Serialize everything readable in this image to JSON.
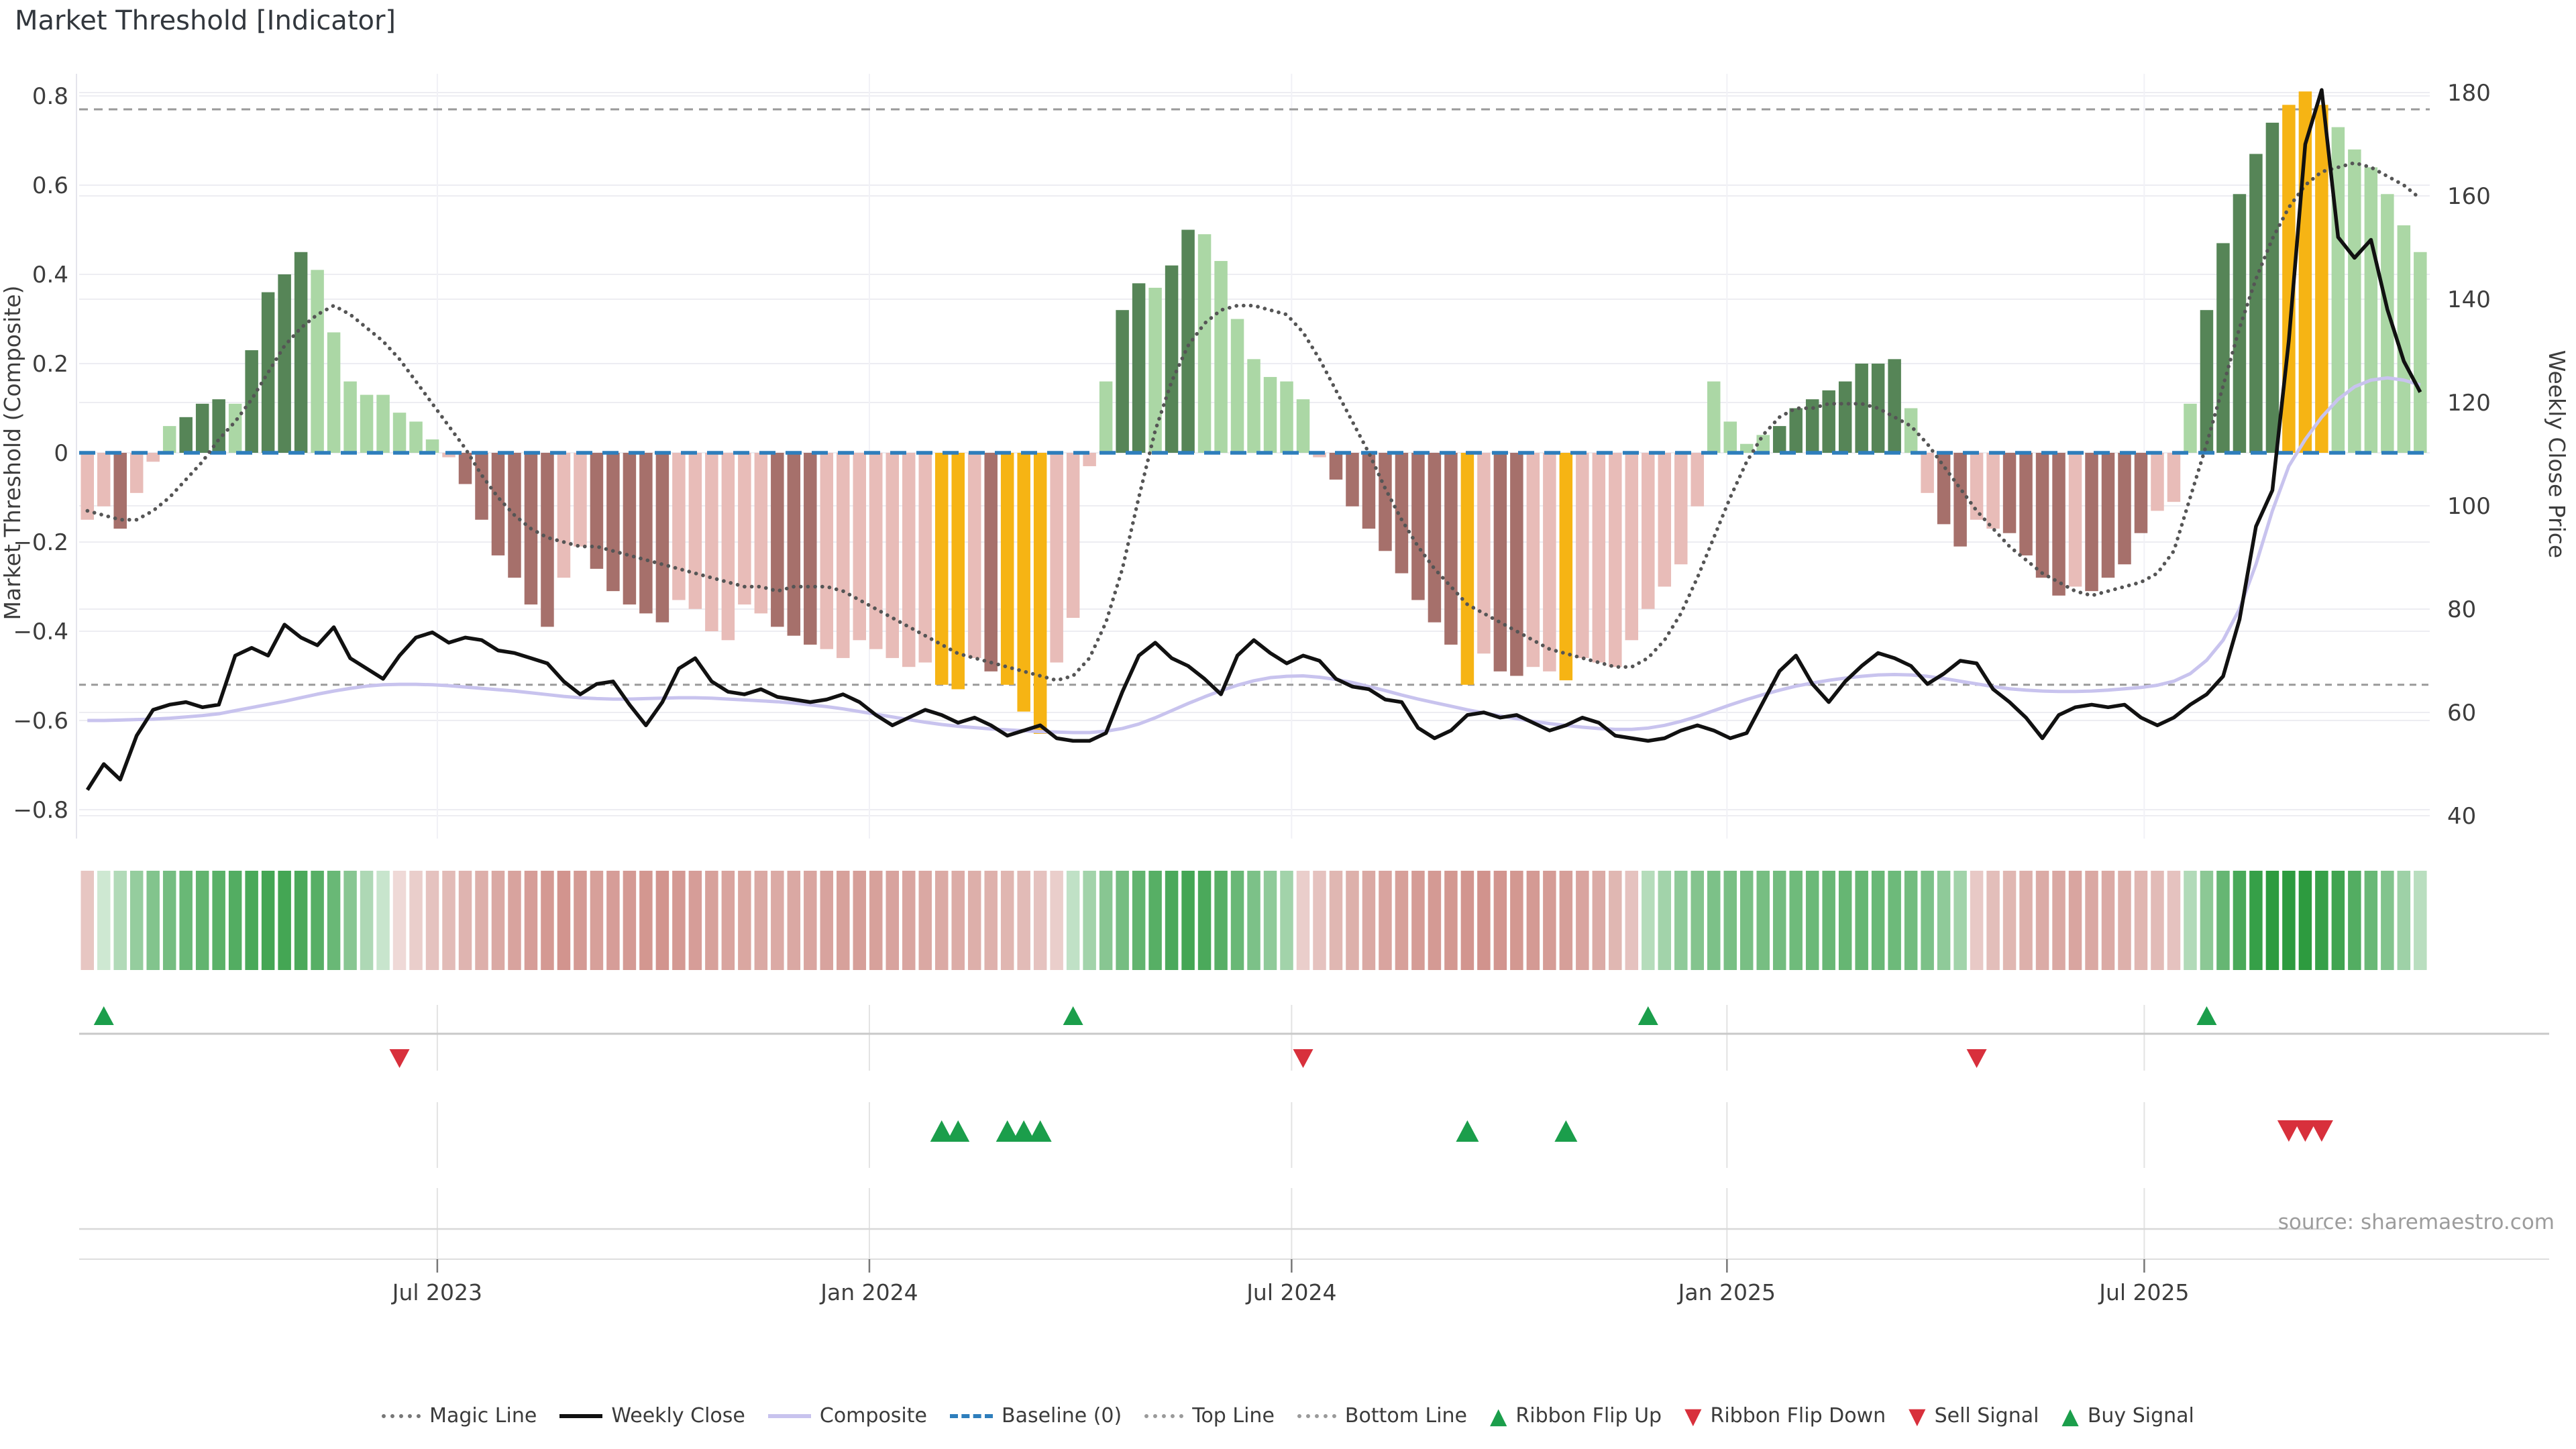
{
  "title": "Market Threshold [Indicator]",
  "source": "source: sharemaestro.com",
  "axes": {
    "left": {
      "title": "Market Threshold (Composite)",
      "ticks": [
        "0.8",
        "0.6",
        "0.4",
        "0.2",
        "0",
        "−0.2",
        "−0.4",
        "−0.6",
        "−0.8"
      ],
      "tick_values": [
        0.8,
        0.6,
        0.4,
        0.2,
        0,
        -0.2,
        -0.4,
        -0.6,
        -0.8
      ]
    },
    "right": {
      "title": "Weekly Close Price",
      "ticks": [
        "180",
        "160",
        "140",
        "120",
        "100",
        "80",
        "60",
        "40"
      ],
      "tick_values": [
        180,
        160,
        140,
        120,
        100,
        80,
        60,
        40
      ]
    },
    "x": {
      "ticks": [
        {
          "label": "Jul 2023",
          "w": 21.3
        },
        {
          "label": "Jan 2024",
          "w": 47.6
        },
        {
          "label": "Jul 2024",
          "w": 73.3
        },
        {
          "label": "Jan 2025",
          "w": 99.8
        },
        {
          "label": "Jul 2025",
          "w": 125.2
        }
      ]
    }
  },
  "colors": {
    "bar_pale_red": "#e8bcb8",
    "bar_dark_red": "#a6706b",
    "bar_pale_green": "#abd7a5",
    "bar_dark_green": "#568557",
    "bar_gold": "#f6b414",
    "weekly_close": "#111111",
    "composite": "#c8c3ee",
    "magic_line": "#555555",
    "baseline": "#2e7ebc",
    "guide_line": "#9a9a9a",
    "ribbon_green_max": "#2d9b3f",
    "ribbon_red_max": "#c77b73",
    "signal_green": "#1b9e4b",
    "signal_red": "#d8303c",
    "grid": "#ededf2",
    "panel_grid": "#e3e3e3",
    "separator_strong": "#c9c9c9",
    "separator_light": "#d8d8d8",
    "tick_text": "#3d3d3d"
  },
  "chart_data": {
    "type": "combo: weekly threshold bars + dual-axis lines + ribbon heatmap + signal markers",
    "x_range": "Feb 2023 - Oct 2025, weekly (143 bars)",
    "n_weeks": 143,
    "ylim_left": [
      -0.8,
      0.8
    ],
    "ylim_right": [
      40,
      180
    ],
    "baseline": 0,
    "top_line": 0.77,
    "bottom_line": -0.52,
    "bar_type_key": {
      "p": "pale red",
      "d": "dark red",
      "l": "pale green",
      "g": "dark green",
      "G": "gold signal week"
    },
    "bar_types": "ppdpplggglggggllllllllpddddddppdddddppppppdddpppppppGGpdGGGppplgglgglllllllpddddddddGpddppGppppppppllllgggggggglpddppddddpddddpplgggggGGGllllll",
    "bars": [
      -0.15,
      -0.12,
      -0.17,
      -0.09,
      -0.02,
      0.06,
      0.08,
      0.11,
      0.12,
      0.11,
      0.23,
      0.36,
      0.4,
      0.45,
      0.41,
      0.27,
      0.16,
      0.13,
      0.13,
      0.09,
      0.07,
      0.03,
      -0.01,
      -0.07,
      -0.15,
      -0.23,
      -0.28,
      -0.34,
      -0.39,
      -0.28,
      -0.21,
      -0.26,
      -0.31,
      -0.34,
      -0.36,
      -0.38,
      -0.33,
      -0.35,
      -0.4,
      -0.42,
      -0.34,
      -0.36,
      -0.39,
      -0.41,
      -0.43,
      -0.44,
      -0.46,
      -0.42,
      -0.44,
      -0.46,
      -0.48,
      -0.47,
      -0.52,
      -0.53,
      -0.46,
      -0.49,
      -0.52,
      -0.58,
      -0.63,
      -0.47,
      -0.37,
      -0.03,
      0.16,
      0.32,
      0.38,
      0.37,
      0.42,
      0.5,
      0.49,
      0.43,
      0.3,
      0.21,
      0.17,
      0.16,
      0.12,
      -0.01,
      -0.06,
      -0.12,
      -0.17,
      -0.22,
      -0.27,
      -0.33,
      -0.38,
      -0.43,
      -0.52,
      -0.45,
      -0.49,
      -0.5,
      -0.48,
      -0.49,
      -0.51,
      -0.46,
      -0.47,
      -0.48,
      -0.42,
      -0.35,
      -0.3,
      -0.25,
      -0.12,
      0.16,
      0.07,
      0.02,
      0.04,
      0.06,
      0.1,
      0.12,
      0.14,
      0.16,
      0.2,
      0.2,
      0.21,
      0.1,
      -0.09,
      -0.16,
      -0.21,
      -0.15,
      -0.17,
      -0.18,
      -0.23,
      -0.28,
      -0.32,
      -0.3,
      -0.31,
      -0.28,
      -0.25,
      -0.18,
      -0.13,
      -0.11,
      0.11,
      0.32,
      0.47,
      0.58,
      0.67,
      0.74,
      0.78,
      0.81,
      0.78,
      0.73,
      0.68,
      0.64,
      0.58,
      0.51,
      0.45
    ],
    "weekly_close": [
      45,
      50,
      47,
      55.5,
      60.5,
      61.5,
      62,
      61,
      61.5,
      71,
      72.5,
      71,
      77,
      74.5,
      73,
      76.5,
      70.5,
      68.5,
      66.5,
      71,
      74.5,
      75.5,
      73.5,
      74.5,
      74,
      72,
      71.5,
      70.5,
      69.5,
      66,
      63.5,
      65.5,
      66,
      61.5,
      57.5,
      62,
      68.5,
      70.5,
      66,
      64,
      63.5,
      64.5,
      63,
      62.5,
      62,
      62.5,
      63.5,
      62,
      59.5,
      57.5,
      59,
      60.5,
      59.5,
      58,
      59,
      57.5,
      55.5,
      56.5,
      57.5,
      55,
      54.5,
      54.5,
      56,
      64,
      71,
      73.5,
      70.5,
      69,
      66.5,
      63.5,
      71,
      74,
      71.5,
      69.5,
      71,
      70,
      66.5,
      65,
      64.5,
      62.5,
      62,
      57,
      55,
      56.5,
      59.5,
      60,
      59,
      59.5,
      58,
      56.5,
      57.5,
      59,
      58,
      55.5,
      55,
      54.5,
      55,
      56.5,
      57.5,
      56.5,
      55,
      56,
      62,
      68,
      71,
      65.5,
      62,
      66,
      69,
      71.5,
      70.5,
      69,
      65.5,
      67.5,
      70,
      69.5,
      64.5,
      62,
      59,
      55,
      59.5,
      61,
      61.5,
      61,
      61.5,
      59,
      57.5,
      59,
      61.5,
      63.5,
      67,
      78,
      96,
      103,
      132,
      170,
      180.5,
      152,
      148,
      151.5,
      138,
      128,
      122
    ],
    "composite": [
      -0.6,
      -0.6,
      -0.599,
      -0.598,
      -0.597,
      -0.595,
      -0.592,
      -0.589,
      -0.585,
      -0.578,
      -0.571,
      -0.564,
      -0.557,
      -0.549,
      -0.541,
      -0.534,
      -0.528,
      -0.523,
      -0.52,
      -0.519,
      -0.519,
      -0.52,
      -0.522,
      -0.525,
      -0.528,
      -0.531,
      -0.534,
      -0.538,
      -0.542,
      -0.546,
      -0.549,
      -0.551,
      -0.552,
      -0.552,
      -0.551,
      -0.55,
      -0.549,
      -0.549,
      -0.55,
      -0.552,
      -0.554,
      -0.556,
      -0.558,
      -0.561,
      -0.565,
      -0.569,
      -0.574,
      -0.58,
      -0.586,
      -0.592,
      -0.598,
      -0.604,
      -0.609,
      -0.613,
      -0.616,
      -0.619,
      -0.621,
      -0.623,
      -0.625,
      -0.626,
      -0.627,
      -0.627,
      -0.624,
      -0.618,
      -0.608,
      -0.594,
      -0.578,
      -0.562,
      -0.547,
      -0.533,
      -0.521,
      -0.511,
      -0.504,
      -0.501,
      -0.5,
      -0.503,
      -0.508,
      -0.515,
      -0.524,
      -0.533,
      -0.543,
      -0.552,
      -0.56,
      -0.568,
      -0.576,
      -0.583,
      -0.59,
      -0.596,
      -0.602,
      -0.607,
      -0.611,
      -0.615,
      -0.618,
      -0.62,
      -0.62,
      -0.617,
      -0.611,
      -0.602,
      -0.591,
      -0.578,
      -0.565,
      -0.553,
      -0.542,
      -0.532,
      -0.523,
      -0.516,
      -0.51,
      -0.505,
      -0.501,
      -0.498,
      -0.497,
      -0.498,
      -0.501,
      -0.506,
      -0.512,
      -0.518,
      -0.524,
      -0.529,
      -0.532,
      -0.534,
      -0.535,
      -0.535,
      -0.534,
      -0.532,
      -0.529,
      -0.526,
      -0.521,
      -0.512,
      -0.495,
      -0.465,
      -0.42,
      -0.35,
      -0.25,
      -0.13,
      -0.03,
      0.03,
      0.08,
      0.12,
      0.148,
      0.163,
      0.168,
      0.163,
      0.152
    ],
    "magic_line": [
      -0.13,
      -0.14,
      -0.15,
      -0.15,
      -0.13,
      -0.1,
      -0.06,
      -0.02,
      0.03,
      0.07,
      0.12,
      0.18,
      0.24,
      0.28,
      0.31,
      0.33,
      0.31,
      0.28,
      0.25,
      0.21,
      0.16,
      0.11,
      0.06,
      0.01,
      -0.05,
      -0.1,
      -0.14,
      -0.17,
      -0.19,
      -0.2,
      -0.21,
      -0.21,
      -0.22,
      -0.23,
      -0.24,
      -0.25,
      -0.26,
      -0.27,
      -0.28,
      -0.29,
      -0.3,
      -0.3,
      -0.31,
      -0.3,
      -0.3,
      -0.3,
      -0.31,
      -0.33,
      -0.35,
      -0.37,
      -0.39,
      -0.41,
      -0.43,
      -0.45,
      -0.46,
      -0.47,
      -0.48,
      -0.49,
      -0.5,
      -0.51,
      -0.5,
      -0.46,
      -0.38,
      -0.26,
      -0.1,
      0.05,
      0.16,
      0.24,
      0.29,
      0.32,
      0.33,
      0.33,
      0.32,
      0.31,
      0.27,
      0.21,
      0.14,
      0.07,
      0.0,
      -0.08,
      -0.15,
      -0.21,
      -0.26,
      -0.3,
      -0.34,
      -0.36,
      -0.38,
      -0.4,
      -0.42,
      -0.44,
      -0.45,
      -0.46,
      -0.47,
      -0.48,
      -0.48,
      -0.46,
      -0.42,
      -0.36,
      -0.28,
      -0.19,
      -0.1,
      -0.02,
      0.04,
      0.08,
      0.1,
      0.1,
      0.11,
      0.11,
      0.11,
      0.1,
      0.08,
      0.06,
      0.02,
      -0.03,
      -0.08,
      -0.13,
      -0.17,
      -0.21,
      -0.24,
      -0.27,
      -0.29,
      -0.31,
      -0.32,
      -0.31,
      -0.3,
      -0.29,
      -0.27,
      -0.22,
      -0.1,
      0.02,
      0.15,
      0.28,
      0.39,
      0.48,
      0.55,
      0.6,
      0.63,
      0.64,
      0.65,
      0.64,
      0.62,
      0.6,
      0.57
    ],
    "ribbon": [
      -0.35,
      0.15,
      0.3,
      0.45,
      0.55,
      0.62,
      0.68,
      0.72,
      0.76,
      0.8,
      0.85,
      0.88,
      0.88,
      0.84,
      0.78,
      0.68,
      0.52,
      0.32,
      0.18,
      -0.18,
      -0.28,
      -0.38,
      -0.44,
      -0.5,
      -0.55,
      -0.6,
      -0.65,
      -0.7,
      -0.74,
      -0.78,
      -0.73,
      -0.68,
      -0.7,
      -0.73,
      -0.76,
      -0.78,
      -0.74,
      -0.7,
      -0.67,
      -0.64,
      -0.62,
      -0.6,
      -0.59,
      -0.61,
      -0.63,
      -0.65,
      -0.67,
      -0.69,
      -0.67,
      -0.65,
      -0.63,
      -0.61,
      -0.59,
      -0.57,
      -0.55,
      -0.53,
      -0.49,
      -0.44,
      -0.38,
      -0.28,
      0.22,
      0.38,
      0.52,
      0.62,
      0.72,
      0.78,
      0.84,
      0.88,
      0.84,
      0.78,
      0.68,
      0.58,
      0.48,
      0.38,
      -0.28,
      -0.38,
      -0.48,
      -0.54,
      -0.6,
      -0.64,
      -0.68,
      -0.71,
      -0.73,
      -0.75,
      -0.77,
      -0.79,
      -0.77,
      -0.75,
      -0.73,
      -0.71,
      -0.69,
      -0.64,
      -0.58,
      -0.48,
      -0.38,
      0.28,
      0.38,
      0.48,
      0.54,
      0.58,
      0.6,
      0.6,
      0.61,
      0.63,
      0.65,
      0.67,
      0.69,
      0.7,
      0.7,
      0.68,
      0.66,
      0.63,
      0.58,
      0.48,
      0.38,
      -0.32,
      -0.42,
      -0.48,
      -0.54,
      -0.58,
      -0.61,
      -0.63,
      -0.61,
      -0.59,
      -0.54,
      -0.49,
      -0.44,
      -0.38,
      0.3,
      0.5,
      0.7,
      0.85,
      0.95,
      1.0,
      1.0,
      1.0,
      0.95,
      0.9,
      0.8,
      0.68,
      0.55,
      0.4,
      0.26
    ],
    "signals": {
      "ribbon_flip_up_weeks": [
        1,
        60,
        95,
        129
      ],
      "ribbon_flip_down_weeks": [
        19,
        74,
        115
      ],
      "buy_signal_weeks": [
        52,
        53,
        56,
        57,
        58,
        84,
        90
      ],
      "sell_signal_weeks": [
        134,
        135,
        136
      ]
    }
  },
  "legend": {
    "items": [
      {
        "label": "Magic Line",
        "type": "line",
        "style": "dotted",
        "color": "#777777"
      },
      {
        "label": "Weekly Close",
        "type": "line",
        "style": "solid",
        "color": "#111111"
      },
      {
        "label": "Composite",
        "type": "line",
        "style": "solid",
        "color": "#c8c3ee"
      },
      {
        "label": "Baseline (0)",
        "type": "line",
        "style": "dashed",
        "color": "#2e7ebc"
      },
      {
        "label": "Top Line",
        "type": "line",
        "style": "dotted",
        "color": "#9a9a9a"
      },
      {
        "label": "Bottom Line",
        "type": "line",
        "style": "dotted",
        "color": "#9a9a9a"
      },
      {
        "label": "Ribbon Flip Up",
        "type": "marker",
        "shape": "triangle-up",
        "color": "#1b9e4b"
      },
      {
        "label": "Ribbon Flip Down",
        "type": "marker",
        "shape": "triangle-down",
        "color": "#d8303c"
      },
      {
        "label": "Sell Signal",
        "type": "marker",
        "shape": "triangle-down",
        "color": "#d8303c"
      },
      {
        "label": "Buy Signal",
        "type": "marker",
        "shape": "triangle-up",
        "color": "#1b9e4b"
      }
    ]
  }
}
